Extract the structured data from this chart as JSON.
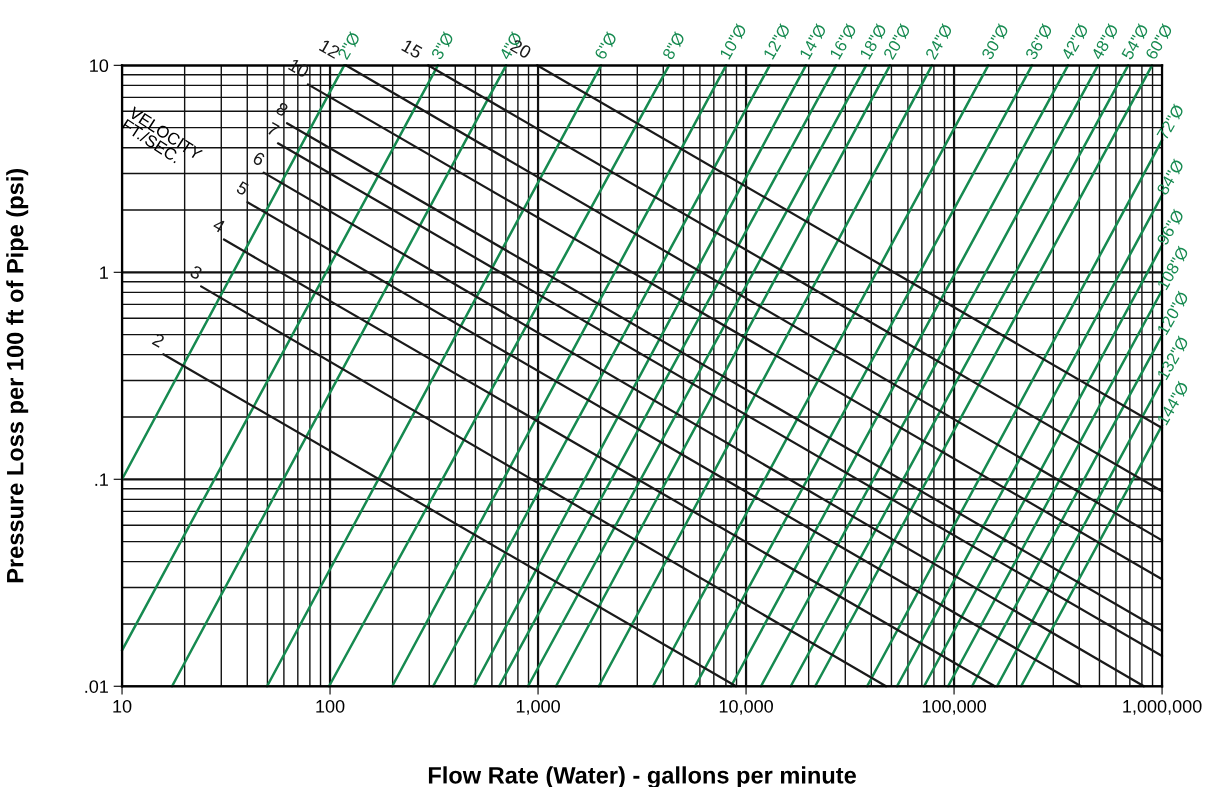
{
  "chart_data": {
    "type": "line",
    "xlabel": "Flow Rate (Water) - gallons per minute",
    "ylabel": "Pressure Loss per 100 ft of Pipe (psi)",
    "log": "xy",
    "grid": true,
    "xlim": [
      10,
      1000000
    ],
    "ylim": [
      0.01,
      10
    ],
    "xticks": [
      10,
      100,
      {
        "value": 1000,
        "label": "1,000"
      },
      {
        "value": 10000,
        "label": "10,000"
      },
      {
        "value": 100000,
        "label": "100,000"
      },
      {
        "value": 1000000,
        "label": "1,000,000"
      }
    ],
    "yticks": [
      {
        "value": 0.01,
        "label": ".01"
      },
      {
        "value": 0.1,
        "label": ".1"
      },
      1,
      10
    ],
    "annotations": [
      "VELOCITY\nFT./SEC."
    ],
    "series": [
      {
        "name": "2\"Ø",
        "color": "#168a50",
        "x": [
          10,
          117
        ],
        "values": [
          0.1,
          10
        ]
      },
      {
        "name": "3\"Ø",
        "color": "#168a50",
        "x": [
          10,
          330
        ],
        "values": [
          0.0149,
          10
        ]
      },
      {
        "name": "4\"Ø",
        "color": "#168a50",
        "x": [
          17.4,
          702
        ],
        "values": [
          0.01,
          10
        ]
      },
      {
        "name": "6\"Ø",
        "color": "#168a50",
        "x": [
          49.8,
          2010
        ],
        "values": [
          0.01,
          10
        ]
      },
      {
        "name": "8\"Ø",
        "color": "#168a50",
        "x": [
          98.9,
          4265
        ],
        "values": [
          0.01,
          10
        ]
      },
      {
        "name": "10\"Ø",
        "color": "#168a50",
        "x": [
          199,
          8020
        ],
        "values": [
          0.01,
          10
        ]
      },
      {
        "name": "12\"Ø",
        "color": "#168a50",
        "x": [
          313,
          13000
        ],
        "values": [
          0.01,
          10
        ]
      },
      {
        "name": "14\"Ø",
        "color": "#168a50",
        "x": [
          492,
          19400
        ],
        "values": [
          0.01,
          10
        ]
      },
      {
        "name": "16\"Ø",
        "color": "#168a50",
        "x": [
          650,
          27100
        ],
        "values": [
          0.01,
          10
        ]
      },
      {
        "name": "18\"Ø",
        "color": "#168a50",
        "x": [
          895,
          37800
        ],
        "values": [
          0.01,
          10
        ]
      },
      {
        "name": "20\"Ø",
        "color": "#168a50",
        "x": [
          1220,
          49200
        ],
        "values": [
          0.01,
          10
        ]
      },
      {
        "name": "24\"Ø",
        "color": "#168a50",
        "x": [
          1960,
          78300
        ],
        "values": [
          0.01,
          10
        ]
      },
      {
        "name": "30\"Ø",
        "color": "#168a50",
        "x": [
          3570,
          146000
        ],
        "values": [
          0.01,
          10
        ]
      },
      {
        "name": "36\"Ø",
        "color": "#168a50",
        "x": [
          5690,
          237000
        ],
        "values": [
          0.01,
          10
        ]
      },
      {
        "name": "42\"Ø",
        "color": "#168a50",
        "x": [
          8470,
          353000
        ],
        "values": [
          0.01,
          10
        ]
      },
      {
        "name": "48\"Ø",
        "color": "#168a50",
        "x": [
          11800,
          492000
        ],
        "values": [
          0.01,
          10
        ]
      },
      {
        "name": "54\"Ø",
        "color": "#168a50",
        "x": [
          16400,
          687000
        ],
        "values": [
          0.01,
          10
        ]
      },
      {
        "name": "60\"Ø",
        "color": "#168a50",
        "x": [
          21500,
          895000
        ],
        "values": [
          0.01,
          10
        ]
      },
      {
        "name": "72\"Ø",
        "color": "#168a50",
        "x": [
          38200,
          1000000
        ],
        "values": [
          0.01,
          4.35
        ]
      },
      {
        "name": "84\"Ø",
        "color": "#168a50",
        "x": [
          53200,
          1000000
        ],
        "values": [
          0.01,
          2.36
        ]
      },
      {
        "name": "96\"Ø",
        "color": "#168a50",
        "x": [
          71800,
          1000000
        ],
        "values": [
          0.01,
          1.35
        ]
      },
      {
        "name": "108\"Ø",
        "color": "#168a50",
        "x": [
          93600,
          1000000
        ],
        "values": [
          0.01,
          0.819
        ]
      },
      {
        "name": "120\"Ø",
        "color": "#168a50",
        "x": [
          122000,
          1000000
        ],
        "values": [
          0.01,
          0.496
        ]
      },
      {
        "name": "132\"Ø",
        "color": "#168a50",
        "x": [
          161000,
          1000000
        ],
        "values": [
          0.01,
          0.301
        ]
      },
      {
        "name": "144\"Ø",
        "color": "#168a50",
        "x": [
          210000,
          1000000
        ],
        "values": [
          0.01,
          0.182
        ]
      },
      {
        "name": "2",
        "color": "#1a1a1a",
        "x": [
          15.8,
          8950
        ],
        "values": [
          0.402,
          0.01
        ]
      },
      {
        "name": "3",
        "color": "#1a1a1a",
        "x": [
          24.0,
          47100
        ],
        "values": [
          0.855,
          0.01
        ]
      },
      {
        "name": "4",
        "color": "#1a1a1a",
        "x": [
          30.9,
          157000
        ],
        "values": [
          1.44,
          0.01
        ]
      },
      {
        "name": "5",
        "color": "#1a1a1a",
        "x": [
          40.1,
          408000
        ],
        "values": [
          2.18,
          0.01
        ]
      },
      {
        "name": "6",
        "color": "#1a1a1a",
        "x": [
          48.0,
          818000
        ],
        "values": [
          3.03,
          0.01
        ]
      },
      {
        "name": "7",
        "color": "#1a1a1a",
        "x": [
          56.2,
          1000000
        ],
        "values": [
          4.2,
          0.014
        ]
      },
      {
        "name": "8",
        "color": "#1a1a1a",
        "x": [
          62.1,
          1000000
        ],
        "values": [
          5.25,
          0.0185
        ]
      },
      {
        "name": "10",
        "color": "#1a1a1a",
        "x": [
          78.3,
          1000000
        ],
        "values": [
          8.09,
          0.0329
        ]
      },
      {
        "name": "12",
        "color": "#1a1a1a",
        "x": [
          119,
          1000000
        ],
        "values": [
          10,
          0.0507
        ]
      },
      {
        "name": "15",
        "color": "#1a1a1a",
        "x": [
          296,
          1000000
        ],
        "values": [
          10,
          0.0875
        ]
      },
      {
        "name": "20",
        "color": "#1a1a1a",
        "x": [
          989,
          1000000
        ],
        "values": [
          10,
          0.177
        ]
      }
    ]
  }
}
